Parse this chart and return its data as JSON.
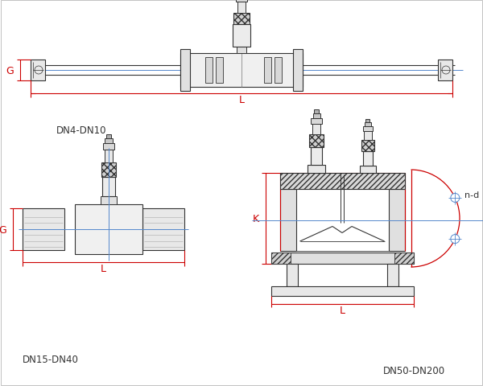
{
  "bg_color": "#ffffff",
  "line_color": "#333333",
  "red_color": "#cc0000",
  "blue_color": "#5588cc",
  "fig_width": 6.0,
  "fig_height": 4.81,
  "labels": {
    "dn4_dn10": "DN4-DN10",
    "dn15_dn40": "DN15-DN40",
    "dn50_dn200": "DN50-DN200",
    "G": "G",
    "L": "L",
    "K": "K",
    "nd": "n-d"
  }
}
